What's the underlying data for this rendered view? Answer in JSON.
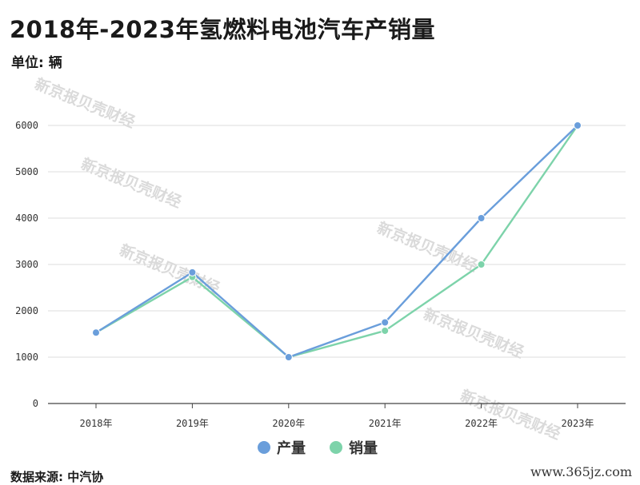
{
  "title": "2018年-2023年氢燃料电池汽车产销量",
  "unit_label": "单位: 辆",
  "source_label": "数据来源: 中汽协",
  "site_label": "www.365jz.com",
  "watermark_text": "新京报贝壳财经",
  "chart_data": {
    "type": "line",
    "categories": [
      "2018年",
      "2019年",
      "2020年",
      "2021年",
      "2022年",
      "2023年"
    ],
    "series": [
      {
        "name": "产量",
        "color": "#6a9edb",
        "values": [
          1530,
          2830,
          1000,
          1750,
          4000,
          6000
        ]
      },
      {
        "name": "销量",
        "color": "#7dd3aa",
        "values": [
          1530,
          2730,
          1000,
          1570,
          3000,
          6000
        ]
      }
    ],
    "ylim": [
      0,
      6000
    ],
    "yticks": [
      "0",
      "1000",
      "2000",
      "3000",
      "4000",
      "5000",
      "6000"
    ],
    "grid": true,
    "legend_position": "bottom-center"
  }
}
